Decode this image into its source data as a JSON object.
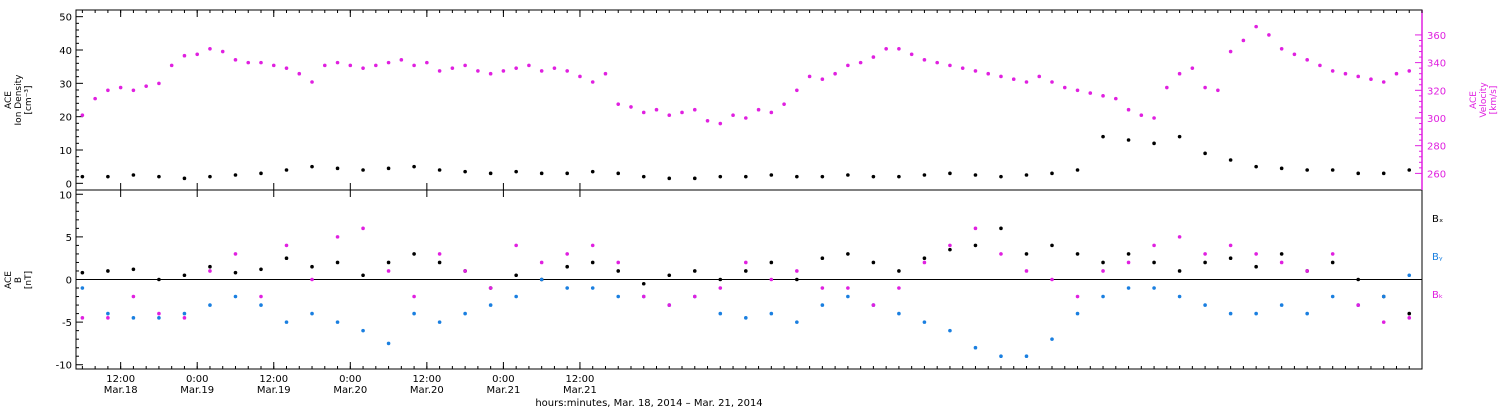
{
  "colors": {
    "black": "#000000",
    "magenta": "#e020e0",
    "blue": "#1a7fe0",
    "frame": "#000000"
  },
  "chart_data": [
    {
      "type": "scatter",
      "panel": "top",
      "left_axis": {
        "label_lines": [
          "ACE",
          "Ion Density",
          "[cm⁻³]"
        ],
        "ylim": [
          -2,
          52
        ],
        "ticks": [
          "0",
          "10",
          "20",
          "30",
          "40",
          "50"
        ]
      },
      "right_axis": {
        "label_lines": [
          "ACE",
          "Velocity",
          "[km/s]"
        ],
        "ylim": [
          248,
          378
        ],
        "ticks": [
          "260",
          "280",
          "300",
          "320",
          "340",
          "360"
        ]
      },
      "series": [
        {
          "color": "black",
          "axis": "left",
          "note": "ion density (hours since Mar.17 00:00, cm^-3)",
          "x": [
            30,
            34,
            38,
            42,
            46,
            50,
            54,
            58,
            62,
            66,
            70,
            74,
            78,
            82,
            86,
            90,
            94,
            98,
            102,
            106,
            110,
            114,
            118,
            122,
            126,
            130,
            134,
            138,
            142,
            146,
            150,
            154,
            158,
            162,
            166,
            170,
            174,
            178,
            182,
            186,
            190,
            194,
            198,
            202,
            206,
            210,
            214,
            218,
            222,
            226,
            230,
            234,
            238
          ],
          "y": [
            2,
            2,
            2.5,
            2,
            1.5,
            2,
            2.5,
            3,
            4,
            5,
            4.5,
            4,
            4.5,
            5,
            4,
            3.5,
            3,
            3.5,
            3,
            3,
            3.5,
            3,
            2,
            1.5,
            1.5,
            2,
            2,
            2.5,
            2,
            2,
            2.5,
            2,
            2,
            2.5,
            3,
            2.5,
            2,
            2.5,
            3,
            4,
            14,
            13,
            12,
            14,
            9,
            7,
            5,
            4.5,
            4,
            4,
            3,
            3,
            4
          ]
        },
        {
          "color": "magenta",
          "axis": "right",
          "note": "solar wind velocity (hours since Mar.17 00:00, km/s)",
          "x": [
            30,
            32,
            34,
            36,
            38,
            40,
            42,
            44,
            46,
            48,
            50,
            52,
            54,
            56,
            58,
            60,
            62,
            64,
            66,
            68,
            70,
            72,
            74,
            76,
            78,
            80,
            82,
            84,
            86,
            88,
            90,
            92,
            94,
            96,
            98,
            100,
            102,
            104,
            106,
            108,
            110,
            112,
            114,
            116,
            118,
            120,
            122,
            124,
            126,
            128,
            130,
            132,
            134,
            136,
            138,
            140,
            142,
            144,
            146,
            148,
            150,
            152,
            154,
            156,
            158,
            160,
            162,
            164,
            166,
            168,
            170,
            172,
            174,
            176,
            178,
            180,
            182,
            184,
            186,
            188,
            190,
            192,
            194,
            196,
            198,
            200,
            202,
            204,
            206,
            208,
            210,
            212,
            214,
            216,
            218,
            220,
            222,
            224,
            226,
            228,
            230,
            232,
            234,
            236,
            238
          ],
          "y": [
            302,
            314,
            320,
            322,
            320,
            323,
            325,
            338,
            345,
            346,
            350,
            348,
            342,
            340,
            340,
            338,
            336,
            332,
            326,
            338,
            340,
            338,
            336,
            338,
            340,
            342,
            338,
            340,
            334,
            336,
            338,
            334,
            332,
            334,
            336,
            338,
            334,
            336,
            334,
            330,
            326,
            332,
            310,
            308,
            304,
            306,
            302,
            304,
            306,
            298,
            296,
            302,
            300,
            306,
            304,
            310,
            320,
            330,
            328,
            332,
            338,
            340,
            344,
            350,
            350,
            346,
            342,
            340,
            338,
            336,
            334,
            332,
            330,
            328,
            326,
            330,
            326,
            322,
            320,
            318,
            316,
            314,
            306,
            302,
            300,
            322,
            332,
            336,
            322,
            320,
            348,
            356,
            366,
            360,
            350,
            346,
            342,
            338,
            334,
            332,
            330,
            328,
            326,
            332,
            334
          ]
        }
      ]
    },
    {
      "type": "scatter",
      "panel": "bottom",
      "left_axis": {
        "label_lines": [
          "ACE",
          "B",
          "[nT]"
        ],
        "ylim": [
          -10.5,
          10.5
        ],
        "ticks": [
          "-10",
          "-5",
          "0",
          "5",
          "10"
        ],
        "reference_line": 0
      },
      "legend": [
        "Bₓ",
        "Bᵧ",
        "Bₖ"
      ],
      "series": [
        {
          "name": "Bₓ",
          "color": "black",
          "x": [
            30,
            34,
            38,
            42,
            46,
            50,
            54,
            58,
            62,
            66,
            70,
            74,
            78,
            82,
            86,
            90,
            94,
            98,
            102,
            106,
            110,
            114,
            118,
            122,
            126,
            130,
            134,
            138,
            142,
            146,
            150,
            154,
            158,
            162,
            166,
            170,
            174,
            178,
            182,
            186,
            190,
            194,
            198,
            202,
            206,
            210,
            214,
            218,
            222,
            226,
            230,
            234,
            238
          ],
          "y": [
            0.8,
            1,
            1.2,
            0,
            0.5,
            1.5,
            0.8,
            1.2,
            2.5,
            1.5,
            2,
            0.5,
            2,
            3,
            2,
            1,
            -1,
            0.5,
            0,
            1.5,
            2,
            1,
            -0.5,
            0.5,
            1,
            0,
            1,
            2,
            0,
            2.5,
            3,
            2,
            1,
            2.5,
            3.5,
            4,
            6,
            3,
            4,
            3,
            2,
            3,
            2,
            1,
            2,
            2.5,
            1.5,
            3,
            1,
            2,
            0,
            -2,
            -4
          ]
        },
        {
          "name": "Bᵧ",
          "color": "blue",
          "x": [
            30,
            34,
            38,
            42,
            46,
            50,
            54,
            58,
            62,
            66,
            70,
            74,
            78,
            82,
            86,
            90,
            94,
            98,
            102,
            106,
            110,
            114,
            118,
            122,
            126,
            130,
            134,
            138,
            142,
            146,
            150,
            154,
            158,
            162,
            166,
            170,
            174,
            178,
            182,
            186,
            190,
            194,
            198,
            202,
            206,
            210,
            214,
            218,
            222,
            226,
            230,
            234,
            238
          ],
          "y": [
            -1,
            -4,
            -4.5,
            -4.5,
            -4,
            -3,
            -2,
            -3,
            -5,
            -4,
            -5,
            -6,
            -7.5,
            -4,
            -5,
            -4,
            -3,
            -2,
            0,
            -1,
            -1,
            -2,
            -2,
            -3,
            -2,
            -4,
            -4.5,
            -4,
            -5,
            -3,
            -2,
            -3,
            -4,
            -5,
            -6,
            -8,
            -9,
            -9,
            -7,
            -4,
            -2,
            -1,
            -1,
            -2,
            -3,
            -4,
            -4,
            -3,
            -4,
            -2,
            -3,
            -2,
            0.5
          ]
        },
        {
          "name": "Bₖ",
          "color": "magenta",
          "x": [
            30,
            34,
            38,
            42,
            46,
            50,
            54,
            58,
            62,
            66,
            70,
            74,
            78,
            82,
            86,
            90,
            94,
            98,
            102,
            106,
            110,
            114,
            118,
            122,
            126,
            130,
            134,
            138,
            142,
            146,
            150,
            154,
            158,
            162,
            166,
            170,
            174,
            178,
            182,
            186,
            190,
            194,
            198,
            202,
            206,
            210,
            214,
            218,
            222,
            226,
            230,
            234,
            238
          ],
          "y": [
            -4.5,
            -4.5,
            -2,
            -4,
            -4.5,
            1,
            3,
            -2,
            4,
            0,
            5,
            6,
            1,
            -2,
            3,
            1,
            -1,
            4,
            2,
            3,
            4,
            2,
            -2,
            -3,
            -2,
            -1,
            2,
            0,
            1,
            -1,
            -1,
            -3,
            -1,
            2,
            4,
            6,
            3,
            1,
            0,
            -2,
            1,
            2,
            4,
            5,
            3,
            4,
            3,
            2,
            1,
            3,
            -3,
            -5,
            -4.5
          ]
        }
      ]
    },
    {
      "type": "axis",
      "shared_x": {
        "xlim": [
          29,
          240
        ],
        "xlabel": "hours:minutes, Mar. 18, 2014 – Mar. 21, 2014",
        "ticks": [
          {
            "time": "12:00",
            "date": "Mar.18",
            "hour": 36
          },
          {
            "time": "0:00",
            "date": "Mar.19",
            "hour": 48
          },
          {
            "time": "12:00",
            "date": "Mar.19",
            "hour": 60
          },
          {
            "time": "0:00",
            "date": "Mar.20",
            "hour": 72
          },
          {
            "time": "12:00",
            "date": "Mar.20",
            "hour": 84
          },
          {
            "time": "0:00",
            "date": "Mar.21",
            "hour": 96
          },
          {
            "time": "12:00",
            "date": "Mar.21",
            "hour": 108
          }
        ]
      }
    }
  ]
}
